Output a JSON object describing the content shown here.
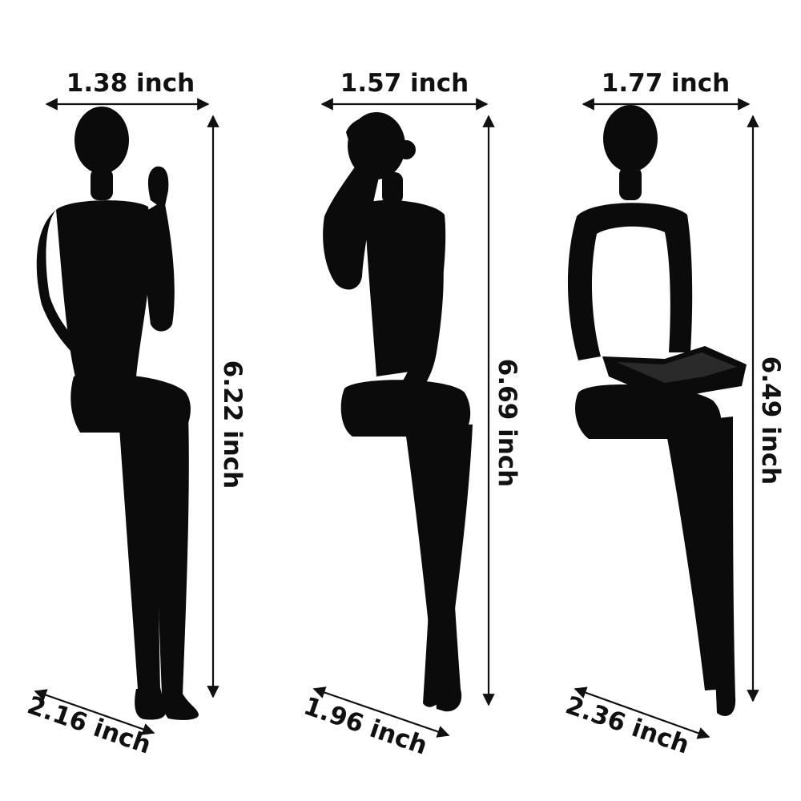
{
  "figures": [
    {
      "pose": "hand raised to chin",
      "width_label": "1.38 inch",
      "height_label": "6.22 inch",
      "depth_label": "2.16 inch"
    },
    {
      "pose": "hand on head, legs crossed",
      "width_label": "1.57 inch",
      "height_label": "6.69 inch",
      "depth_label": "1.96 inch"
    },
    {
      "pose": "reading book",
      "width_label": "1.77 inch",
      "height_label": "6.49 inch",
      "depth_label": "2.36 inch"
    }
  ],
  "colors": {
    "statue": "#0b0b0b",
    "background": "#ffffff",
    "text": "#111111"
  }
}
